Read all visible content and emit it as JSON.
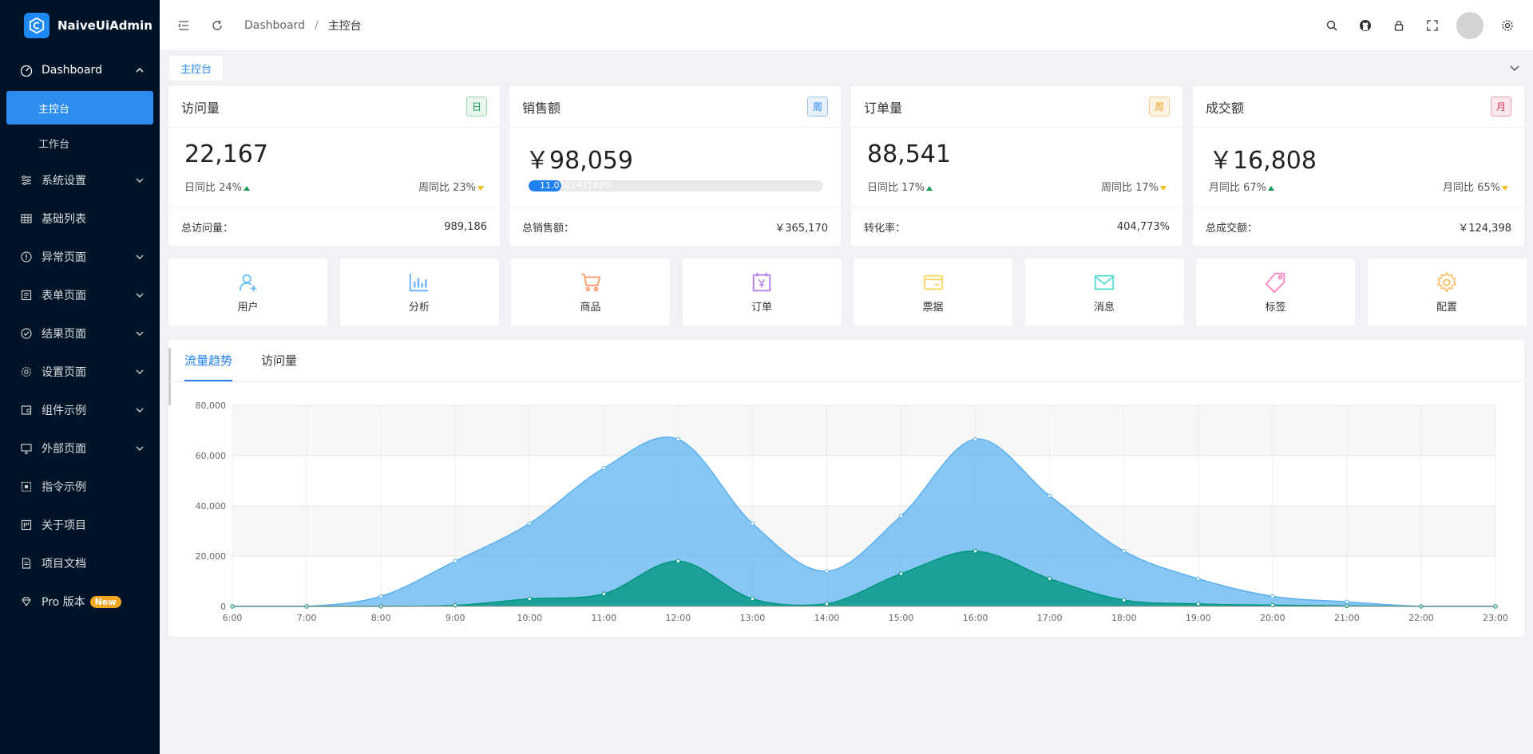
{
  "app": {
    "logo_text": "NaiveUiAdmin"
  },
  "sidebar": {
    "dashboard_label": "Dashboard",
    "sub_items": [
      "主控台",
      "工作台"
    ],
    "items": [
      {
        "label": "系统设置",
        "has_children": true,
        "icon": "sliders-icon"
      },
      {
        "label": "基础列表",
        "has_children": false,
        "icon": "table-icon"
      },
      {
        "label": "异常页面",
        "has_children": true,
        "icon": "alert-circle-icon"
      },
      {
        "label": "表单页面",
        "has_children": true,
        "icon": "form-icon"
      },
      {
        "label": "结果页面",
        "has_children": true,
        "icon": "check-circle-icon"
      },
      {
        "label": "设置页面",
        "has_children": true,
        "icon": "gear-icon"
      },
      {
        "label": "组件示例",
        "has_children": true,
        "icon": "wallet-icon"
      },
      {
        "label": "外部页面",
        "has_children": true,
        "icon": "monitor-icon"
      },
      {
        "label": "指令示例",
        "has_children": false,
        "icon": "grid-icon"
      },
      {
        "label": "关于项目",
        "has_children": false,
        "icon": "project-icon"
      },
      {
        "label": "项目文档",
        "has_children": false,
        "icon": "document-icon"
      }
    ],
    "pro_label": "Pro 版本",
    "pro_badge": "New"
  },
  "header": {
    "breadcrumb": [
      "Dashboard",
      "主控台"
    ],
    "breadcrumb_sep": "/"
  },
  "tabbar": {
    "active_tab": "主控台"
  },
  "stats": [
    {
      "title": "访问量",
      "tag": "日",
      "value": "22,167",
      "left": "日同比 24%",
      "right": "周同比 23%",
      "foot_label": "总访问量：",
      "foot_value": "989,186"
    },
    {
      "title": "销售额",
      "tag": "周",
      "value": "￥98,059",
      "progress": 0.11030247,
      "progress_text": "11.030247168%",
      "foot_label": "总销售额：",
      "foot_value": "￥365,170"
    },
    {
      "title": "订单量",
      "tag": "周",
      "value": "88,541",
      "left": "日同比 17%",
      "right": "周同比 17%",
      "foot_label": "转化率：",
      "foot_value": "404,773%"
    },
    {
      "title": "成交额",
      "tag": "月",
      "value": "￥16,808",
      "left": "月同比 67%",
      "right": "月同比 65%",
      "foot_label": "总成交额：",
      "foot_value": "￥124,398"
    }
  ],
  "quick_nav": [
    {
      "label": "用户",
      "icon": "user-add-icon",
      "color": "#69c0ff"
    },
    {
      "label": "分析",
      "icon": "bar-chart-icon",
      "color": "#69b1ff"
    },
    {
      "label": "商品",
      "icon": "cart-icon",
      "color": "#ff9c6e"
    },
    {
      "label": "订单",
      "icon": "calendar-yen-icon",
      "color": "#b37feb"
    },
    {
      "label": "票据",
      "icon": "card-icon",
      "color": "#ffd666"
    },
    {
      "label": "消息",
      "icon": "mail-icon",
      "color": "#5cdbd3"
    },
    {
      "label": "标签",
      "icon": "tag-icon",
      "color": "#ff85c0"
    },
    {
      "label": "配置",
      "icon": "gear-icon",
      "color": "#ffc069"
    }
  ],
  "chart_tabs": [
    "流量趋势",
    "访问量"
  ],
  "chart_data": {
    "type": "area",
    "x": [
      "6:00",
      "7:00",
      "8:00",
      "9:00",
      "10:00",
      "11:00",
      "12:00",
      "13:00",
      "14:00",
      "15:00",
      "16:00",
      "17:00",
      "18:00",
      "19:00",
      "20:00",
      "21:00",
      "22:00",
      "23:00"
    ],
    "ylim": [
      0,
      80000
    ],
    "yticks": [
      "0",
      "20,000",
      "40,000",
      "60,000",
      "80,000"
    ],
    "series": [
      {
        "color": "#5ab1ef",
        "values": [
          0,
          0,
          4000,
          18000,
          33000,
          55000,
          66500,
          33000,
          14000,
          36000,
          66500,
          44000,
          22000,
          11000,
          4000,
          1800,
          0,
          0
        ]
      },
      {
        "color": "#019680",
        "values": [
          0,
          0,
          0,
          400,
          3000,
          5000,
          18000,
          3000,
          1000,
          13000,
          22000,
          11000,
          2500,
          1000,
          500,
          200,
          0,
          0
        ]
      }
    ],
    "grid": true
  }
}
